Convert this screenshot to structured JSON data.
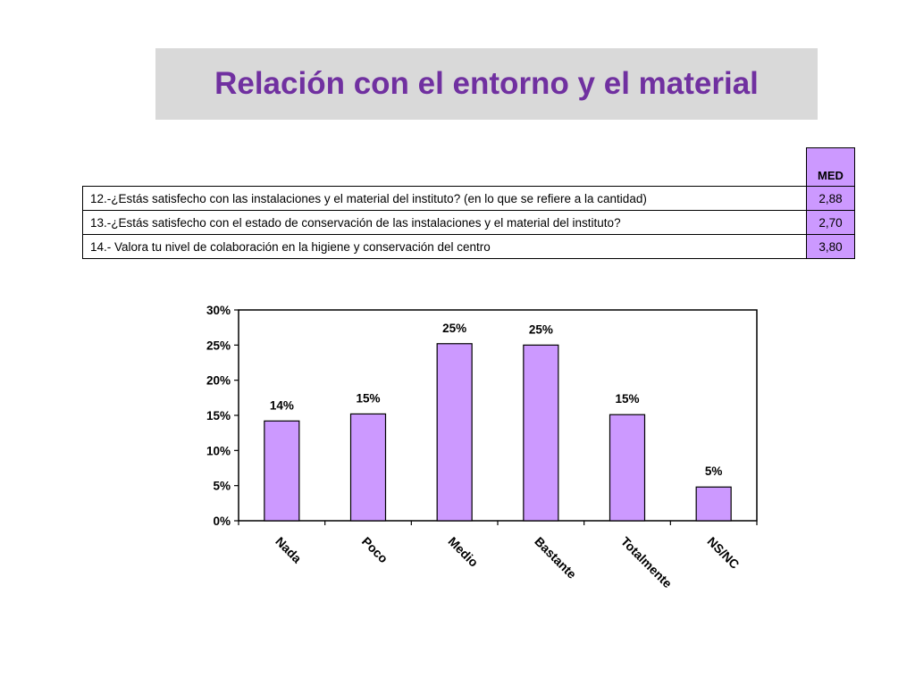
{
  "title": "Relación con el entorno y el material",
  "table": {
    "header": "MED",
    "rows": [
      {
        "question": "12.-¿Estás satisfecho con las instalaciones y el material del instituto? (en lo que se refiere a la cantidad)",
        "value": "2,88"
      },
      {
        "question": "13.-¿Estás satisfecho con el estado de conservación de las instalaciones y el material del instituto?",
        "value": "2,70"
      },
      {
        "question": "14.- Valora tu nivel de colaboración en la higiene y conservación del centro",
        "value": "3,80"
      }
    ]
  },
  "colors": {
    "title": "#7030a0",
    "bar": "#cc99ff",
    "title_bg": "#d9d9d9"
  },
  "chart_data": {
    "type": "bar",
    "categories": [
      "Nada",
      "Poco",
      "Medio",
      "Bastante",
      "Totalmente",
      "NS/NC"
    ],
    "values": [
      14.2,
      15.2,
      25.2,
      25.0,
      15.1,
      4.8
    ],
    "data_labels": [
      "14%",
      "15%",
      "25%",
      "25%",
      "15%",
      "5%"
    ],
    "ylim": [
      0,
      30
    ],
    "yticks": [
      0,
      5,
      10,
      15,
      20,
      25,
      30
    ],
    "ytick_labels": [
      "0%",
      "5%",
      "10%",
      "15%",
      "20%",
      "25%",
      "30%"
    ],
    "title": "",
    "xlabel": "",
    "ylabel": "",
    "grid": false,
    "legend": "none"
  }
}
